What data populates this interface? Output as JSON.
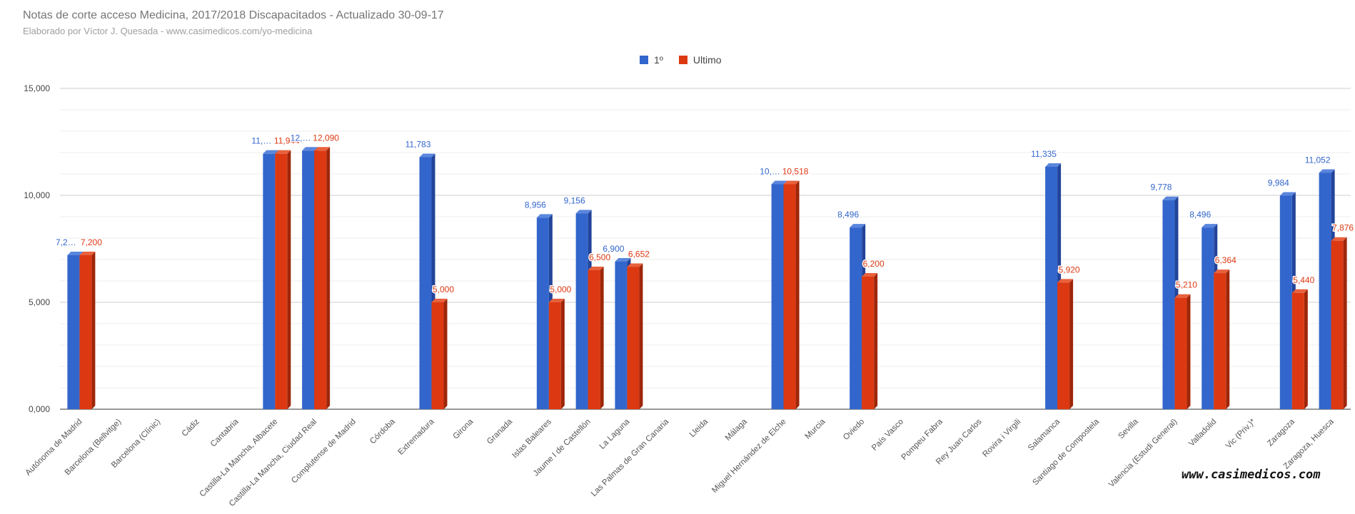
{
  "chart_data": {
    "type": "bar",
    "title": "Notas de corte acceso Medicina, 2017/2018 Discapacitados - Actualizado 30-09-17",
    "subtitle": "Elaborado por Víctor J. Quesada - www.casimedicos.com/yo-medicina",
    "xlabel": "",
    "ylabel": "",
    "ylim": [
      0,
      15000
    ],
    "yticks": [
      0,
      5000,
      10000,
      15000
    ],
    "ytick_labels": [
      "0,000",
      "5,000",
      "10,000",
      "15,000"
    ],
    "grid": true,
    "legend_position": "top",
    "categories": [
      "Autónoma de Madrid",
      "Barcelona (Bellvitge)",
      "Barcelona (Clínic)",
      "Cádiz",
      "Cantabria",
      "Castilla-La Mancha, Albacete",
      "Castilla-La Mancha, Ciudad Real",
      "Complutense de Madrid",
      "Córdoba",
      "Extremadura",
      "Girona",
      "Granada",
      "Islas Baleares",
      "Jaume I de Castellón",
      "La Laguna",
      "Las Palmas de Gran Canaria",
      "Lleida",
      "Málaga",
      "Miguel Hernández de Elche",
      "Murcia",
      "Oviedo",
      "País Vasco",
      "Pompeu Fabra",
      "Rey Juan Carlos",
      "Rovira i Virgili",
      "Salamanca",
      "Santiago de Compostela",
      "Sevilla",
      "Valencia (Estudi General)",
      "Valladolid",
      "Vic (Priv.)*",
      "Zaragoza",
      "Zaragoza, Huesca"
    ],
    "series": [
      {
        "name": "1º",
        "color": "#3366cc",
        "values": [
          7200,
          null,
          null,
          null,
          null,
          11944,
          12090,
          null,
          null,
          11783,
          null,
          null,
          8956,
          9156,
          6900,
          null,
          null,
          null,
          10518,
          null,
          8496,
          null,
          null,
          null,
          null,
          11335,
          null,
          null,
          9778,
          8496,
          null,
          9984,
          11052
        ],
        "labels": [
          "7,2…",
          null,
          null,
          null,
          null,
          "11,…",
          "12,…",
          null,
          null,
          "11,783",
          null,
          null,
          "8,956",
          "9,156",
          "6,900",
          null,
          null,
          null,
          "10,…",
          null,
          "8,496",
          null,
          null,
          null,
          null,
          "11,335",
          null,
          null,
          "9,778",
          "8,496",
          null,
          "9,984",
          "11,052"
        ]
      },
      {
        "name": "Ultimo",
        "color": "#dc3912",
        "values": [
          7200,
          null,
          null,
          null,
          null,
          11944,
          12090,
          null,
          null,
          5000,
          null,
          null,
          5000,
          6500,
          6652,
          null,
          null,
          null,
          10518,
          null,
          6200,
          null,
          null,
          null,
          null,
          5920,
          null,
          null,
          5210,
          6364,
          null,
          5440,
          7876
        ],
        "labels": [
          "7,200",
          null,
          null,
          null,
          null,
          "11,944",
          "12,090",
          null,
          null,
          "5,000",
          null,
          null,
          "5,000",
          "6,500",
          "6,652",
          null,
          null,
          null,
          "10,518",
          null,
          "6,200",
          null,
          null,
          null,
          null,
          "5,920",
          null,
          null,
          "5,210",
          "6,364",
          null,
          "5,440",
          "7,876"
        ]
      }
    ]
  },
  "watermark": "www.casimedicos.com"
}
